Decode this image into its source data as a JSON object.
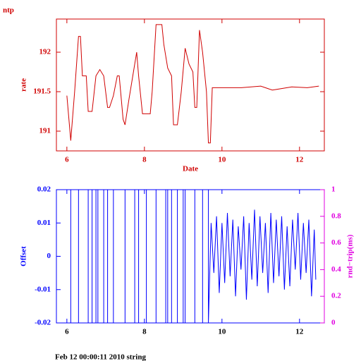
{
  "chart_data": [
    {
      "type": "line",
      "title": "ntp",
      "xlabel": "Date",
      "ylabel": "rate",
      "color": "#d00000",
      "x": [
        6.0,
        6.1,
        6.2,
        6.3,
        6.35,
        6.4,
        6.5,
        6.55,
        6.65,
        6.75,
        6.85,
        6.95,
        7.0,
        7.05,
        7.1,
        7.2,
        7.3,
        7.35,
        7.45,
        7.5,
        7.6,
        7.7,
        7.8,
        7.85,
        7.95,
        8.15,
        8.2,
        8.3,
        8.45,
        8.5,
        8.6,
        8.7,
        8.75,
        8.85,
        8.95,
        9.05,
        9.15,
        9.25,
        9.3,
        9.35,
        9.42,
        9.5,
        9.6,
        9.65,
        9.7,
        9.75,
        10.5,
        11.0,
        11.3,
        11.8,
        12.2,
        12.5
      ],
      "values": [
        191.45,
        190.88,
        191.5,
        192.2,
        192.2,
        191.7,
        191.7,
        191.25,
        191.25,
        191.7,
        191.78,
        191.7,
        191.5,
        191.3,
        191.3,
        191.45,
        191.7,
        191.7,
        191.15,
        191.08,
        191.4,
        191.7,
        192.0,
        191.7,
        191.22,
        191.22,
        191.5,
        192.35,
        192.35,
        192.1,
        191.8,
        191.7,
        191.08,
        191.08,
        191.5,
        192.05,
        191.85,
        191.75,
        191.3,
        191.3,
        192.28,
        192.0,
        191.5,
        190.85,
        190.85,
        191.55,
        191.55,
        191.57,
        191.52,
        191.56,
        191.55,
        191.57
      ],
      "xlim": [
        5.73,
        12.64
      ],
      "xticks": [
        6,
        8,
        10,
        12
      ],
      "ylim": [
        190.75,
        192.42
      ],
      "yticks": [
        191,
        191.5,
        192
      ]
    },
    {
      "type": "line",
      "ylabel": "Offset",
      "y2label": "rnd−trip(ms)",
      "color": "#0000ff",
      "y2color": "#e000e0",
      "x": [
        6.1,
        6.1,
        6.3,
        6.3,
        6.55,
        6.55,
        6.65,
        6.65,
        6.75,
        6.75,
        6.8,
        6.8,
        6.95,
        6.95,
        7.05,
        7.05,
        7.2,
        7.2,
        7.5,
        7.5,
        7.75,
        7.75,
        7.85,
        7.85,
        8.05,
        8.05,
        8.3,
        8.3,
        8.55,
        8.55,
        8.6,
        8.6,
        8.7,
        8.7,
        8.85,
        8.85,
        9.0,
        9.0,
        9.05,
        9.05,
        9.3,
        9.3,
        9.5,
        9.5,
        9.65,
        9.65,
        9.72,
        9.79,
        9.86,
        9.93,
        10.0,
        10.07,
        10.14,
        10.21,
        10.28,
        10.35,
        10.42,
        10.49,
        10.56,
        10.63,
        10.7,
        10.77,
        10.84,
        10.91,
        10.98,
        11.05,
        11.12,
        11.19,
        11.26,
        11.33,
        11.4,
        11.47,
        11.54,
        11.61,
        11.68,
        11.75,
        11.82,
        11.89,
        11.96,
        12.03,
        12.1,
        12.17,
        12.24,
        12.31,
        12.38,
        12.42
      ],
      "values": [
        0.02,
        -0.02,
        -0.02,
        0.02,
        0.02,
        -0.02,
        -0.02,
        0.02,
        0.02,
        -0.02,
        -0.02,
        0.02,
        0.02,
        -0.02,
        -0.02,
        0.02,
        0.02,
        -0.02,
        -0.02,
        0.02,
        0.02,
        -0.02,
        -0.02,
        0.02,
        0.02,
        -0.02,
        -0.02,
        0.02,
        0.02,
        -0.02,
        -0.02,
        0.02,
        0.02,
        -0.02,
        -0.02,
        0.02,
        0.02,
        -0.02,
        -0.02,
        0.02,
        0.02,
        -0.02,
        -0.02,
        0.02,
        0.02,
        -0.02,
        0.01,
        -0.005,
        0.012,
        -0.011,
        0.01,
        -0.008,
        0.013,
        -0.006,
        0.011,
        -0.012,
        0.009,
        -0.004,
        0.012,
        -0.013,
        0.01,
        -0.007,
        0.014,
        -0.009,
        0.012,
        -0.005,
        0.01,
        -0.011,
        0.013,
        -0.008,
        0.011,
        -0.006,
        0.012,
        -0.01,
        0.009,
        -0.009,
        0.011,
        -0.004,
        0.013,
        -0.007,
        0.01,
        -0.005,
        0.011,
        -0.012,
        0.008,
        -0.007
      ],
      "xlim": [
        5.73,
        12.64
      ],
      "xticks": [
        6,
        8,
        10,
        12
      ],
      "ylim": [
        -0.02,
        0.02
      ],
      "yticks": [
        -0.02,
        -0.01,
        0,
        0.01,
        0.02
      ],
      "y2lim": [
        0,
        1
      ],
      "y2ticks": [
        0,
        0.2,
        0.4,
        0.6,
        0.8,
        1
      ]
    }
  ],
  "footer": "Feb 12 00:00:11 2010 string"
}
